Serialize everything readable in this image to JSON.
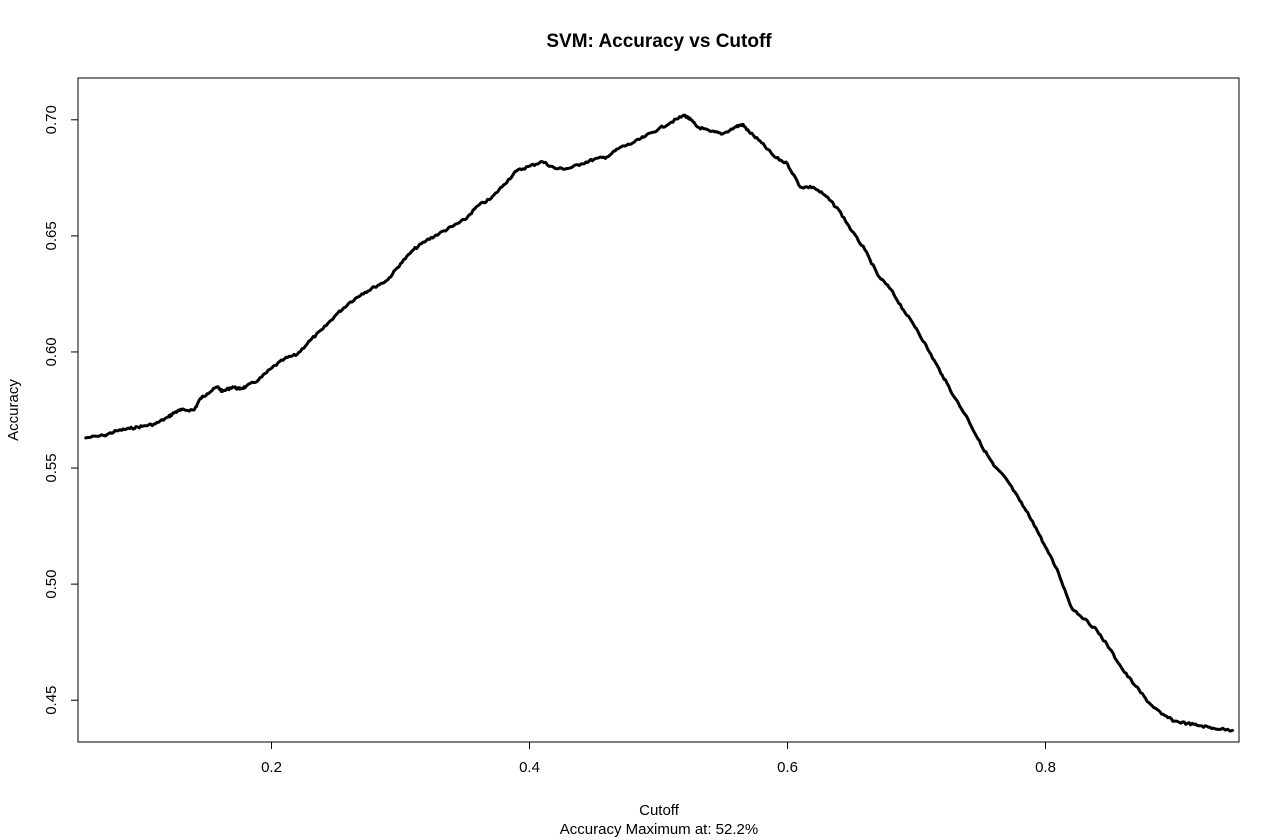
{
  "chart_data": {
    "type": "line",
    "title": "SVM: Accuracy vs Cutoff",
    "xlabel": "Cutoff",
    "subtitle": "Accuracy Maximum at: 52.2%",
    "ylabel": "Accuracy",
    "xlim": [
      0.05,
      0.95
    ],
    "ylim": [
      0.432,
      0.718
    ],
    "x_ticks": [
      0.2,
      0.4,
      0.6,
      0.8
    ],
    "x_tick_labels": [
      "0.2",
      "0.4",
      "0.6",
      "0.8"
    ],
    "y_ticks": [
      0.45,
      0.5,
      0.55,
      0.6,
      0.65,
      0.7
    ],
    "y_tick_labels": [
      "0.45",
      "0.50",
      "0.55",
      "0.60",
      "0.65",
      "0.70"
    ],
    "grid": false,
    "line_color": "#000000",
    "series": [
      {
        "x": [
          0.056,
          0.07,
          0.08,
          0.09,
          0.1,
          0.11,
          0.12,
          0.125,
          0.13,
          0.14,
          0.145,
          0.15,
          0.158,
          0.162,
          0.17,
          0.175,
          0.18,
          0.19,
          0.2,
          0.21,
          0.22,
          0.23,
          0.24,
          0.25,
          0.26,
          0.27,
          0.28,
          0.29,
          0.3,
          0.31,
          0.32,
          0.33,
          0.34,
          0.35,
          0.36,
          0.37,
          0.38,
          0.39,
          0.4,
          0.41,
          0.42,
          0.43,
          0.44,
          0.45,
          0.46,
          0.47,
          0.48,
          0.49,
          0.5,
          0.51,
          0.52,
          0.525,
          0.53,
          0.54,
          0.55,
          0.56,
          0.565,
          0.57,
          0.58,
          0.59,
          0.6,
          0.61,
          0.62,
          0.63,
          0.64,
          0.65,
          0.66,
          0.67,
          0.68,
          0.69,
          0.7,
          0.71,
          0.72,
          0.73,
          0.74,
          0.75,
          0.76,
          0.77,
          0.78,
          0.79,
          0.8,
          0.81,
          0.82,
          0.83,
          0.84,
          0.85,
          0.86,
          0.87,
          0.88,
          0.89,
          0.9,
          0.91,
          0.92,
          0.93,
          0.945
        ],
        "y": [
          0.563,
          0.564,
          0.566,
          0.567,
          0.568,
          0.569,
          0.572,
          0.574,
          0.575,
          0.575,
          0.58,
          0.582,
          0.585,
          0.583,
          0.585,
          0.584,
          0.585,
          0.588,
          0.593,
          0.597,
          0.599,
          0.605,
          0.61,
          0.616,
          0.621,
          0.625,
          0.628,
          0.631,
          0.638,
          0.644,
          0.648,
          0.651,
          0.654,
          0.657,
          0.663,
          0.666,
          0.672,
          0.678,
          0.68,
          0.682,
          0.679,
          0.679,
          0.681,
          0.683,
          0.684,
          0.688,
          0.69,
          0.693,
          0.696,
          0.699,
          0.702,
          0.7,
          0.697,
          0.695,
          0.694,
          0.697,
          0.698,
          0.695,
          0.69,
          0.684,
          0.681,
          0.671,
          0.671,
          0.667,
          0.661,
          0.652,
          0.644,
          0.633,
          0.627,
          0.618,
          0.61,
          0.6,
          0.59,
          0.58,
          0.571,
          0.56,
          0.551,
          0.545,
          0.536,
          0.527,
          0.516,
          0.505,
          0.49,
          0.485,
          0.48,
          0.472,
          0.463,
          0.456,
          0.449,
          0.444,
          0.441,
          0.44,
          0.439,
          0.438,
          0.437
        ]
      }
    ]
  }
}
